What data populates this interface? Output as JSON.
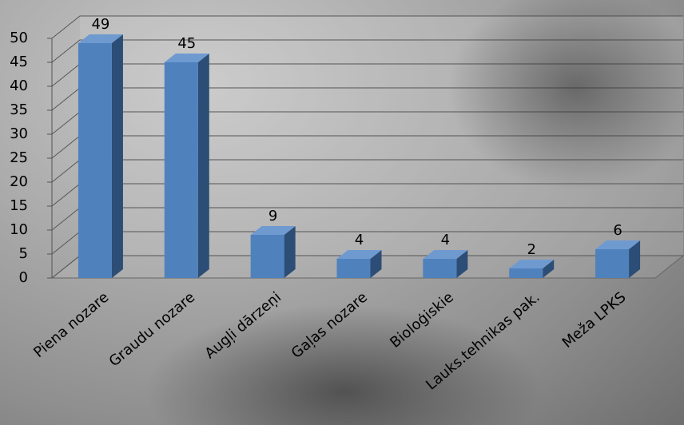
{
  "chart_data": {
    "type": "bar",
    "categories": [
      "Piena nozare",
      "Graudu nozare",
      "Augļi dārzeņi",
      "Gaļas nozare",
      "Bioloģiskie",
      "Lauks.tehnikas pak.",
      "Meža LPKS"
    ],
    "values": [
      49,
      45,
      9,
      4,
      4,
      2,
      6
    ],
    "color": "#4f81bd",
    "ylim": [
      0,
      50
    ],
    "yticks": [
      0,
      5,
      10,
      15,
      20,
      25,
      30,
      35,
      40,
      45,
      50
    ],
    "grid": true
  }
}
